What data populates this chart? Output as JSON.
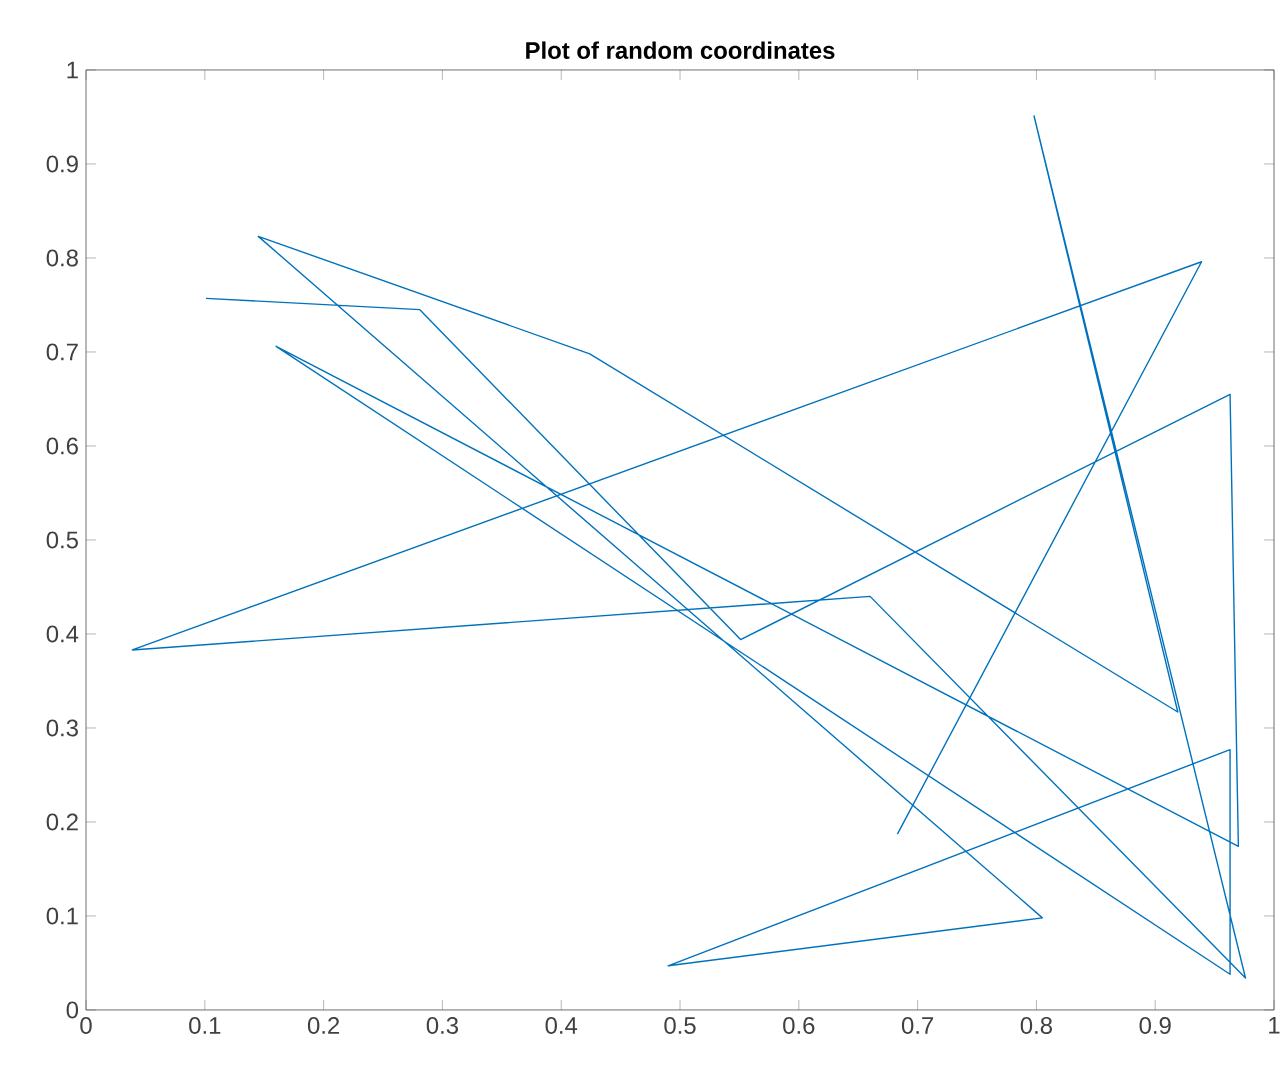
{
  "chart_data": {
    "type": "line",
    "title": "Plot of random coordinates",
    "x": [
      0.101,
      0.281,
      0.551,
      0.963,
      0.97,
      0.16,
      0.963,
      0.963,
      0.49,
      0.805,
      0.145,
      0.424,
      0.919,
      0.798,
      0.976,
      0.66,
      0.039,
      0.939,
      0.683
    ],
    "series": [
      {
        "color": "#0072bd",
        "values": [
          0.757,
          0.745,
          0.394,
          0.655,
          0.174,
          0.706,
          0.038,
          0.277,
          0.047,
          0.098,
          0.823,
          0.698,
          0.317,
          0.951,
          0.034,
          0.44,
          0.383,
          0.796,
          0.187
        ]
      }
    ],
    "xlim": [
      0,
      1
    ],
    "ylim": [
      0,
      1
    ],
    "xticks": [
      0,
      0.1,
      0.2,
      0.3,
      0.4,
      0.5,
      0.6,
      0.7,
      0.8,
      0.9,
      1
    ],
    "yticks": [
      0,
      0.1,
      0.2,
      0.3,
      0.4,
      0.5,
      0.6,
      0.7,
      0.8,
      0.9,
      1
    ],
    "grid": false,
    "marker": "none",
    "line_style": "solid"
  }
}
